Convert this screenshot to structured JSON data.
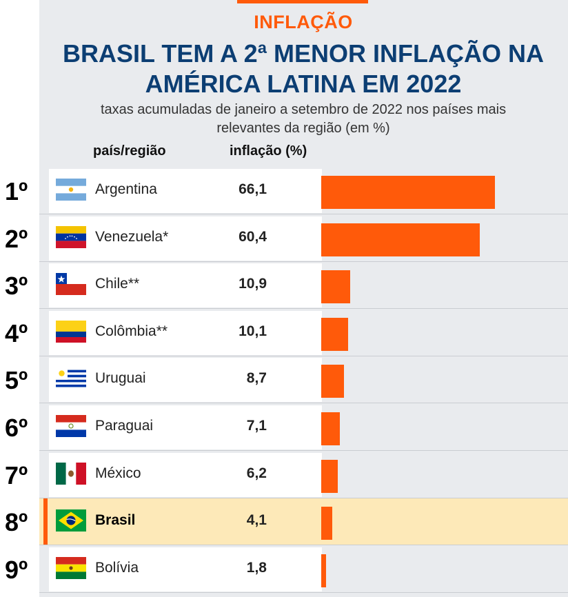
{
  "header": {
    "kicker": "INFLAÇÃO",
    "title_line1": "BRASIL TEM A 2ª MENOR INFLAÇÃO NA",
    "title_line2": "AMÉRICA LATINA EM 2022",
    "subtitle_line1": "taxas acumuladas de janeiro a setembro de 2022 nos países mais",
    "subtitle_line2": "relevantes da região (em %)"
  },
  "columns": {
    "country": "país/região",
    "value": "inflação (%)"
  },
  "colors": {
    "accent": "#ff5a0a",
    "title": "#0c3e73",
    "highlight": "#fde9b8"
  },
  "chart_data": {
    "type": "bar",
    "orientation": "horizontal",
    "title": "BRASIL TEM A 2ª MENOR INFLAÇÃO NA AMÉRICA LATINA EM 2022",
    "subtitle": "taxas acumuladas de janeiro a setembro de 2022 nos países mais relevantes da região (em %)",
    "xlabel": "",
    "ylabel": "",
    "xlim": [
      0,
      66.1
    ],
    "grid": false,
    "highlight": "Brasil",
    "rows": [
      {
        "rank": "1º",
        "country": "Argentina",
        "value": 66.1,
        "value_label": "66,1",
        "flag": "argentina-flag"
      },
      {
        "rank": "2º",
        "country": "Venezuela*",
        "value": 60.4,
        "value_label": "60,4",
        "flag": "venezuela-flag"
      },
      {
        "rank": "3º",
        "country": "Chile**",
        "value": 10.9,
        "value_label": "10,9",
        "flag": "chile-flag"
      },
      {
        "rank": "4º",
        "country": "Colômbia**",
        "value": 10.1,
        "value_label": "10,1",
        "flag": "colombia-flag"
      },
      {
        "rank": "5º",
        "country": "Uruguai",
        "value": 8.7,
        "value_label": "8,7",
        "flag": "uruguay-flag"
      },
      {
        "rank": "6º",
        "country": "Paraguai",
        "value": 7.1,
        "value_label": "7,1",
        "flag": "paraguay-flag"
      },
      {
        "rank": "7º",
        "country": "México",
        "value": 6.2,
        "value_label": "6,2",
        "flag": "mexico-flag"
      },
      {
        "rank": "8º",
        "country": "Brasil",
        "value": 4.1,
        "value_label": "4,1",
        "flag": "brazil-flag"
      },
      {
        "rank": "9º",
        "country": "Bolívia",
        "value": 1.8,
        "value_label": "1,8",
        "flag": "bolivia-flag"
      }
    ]
  }
}
